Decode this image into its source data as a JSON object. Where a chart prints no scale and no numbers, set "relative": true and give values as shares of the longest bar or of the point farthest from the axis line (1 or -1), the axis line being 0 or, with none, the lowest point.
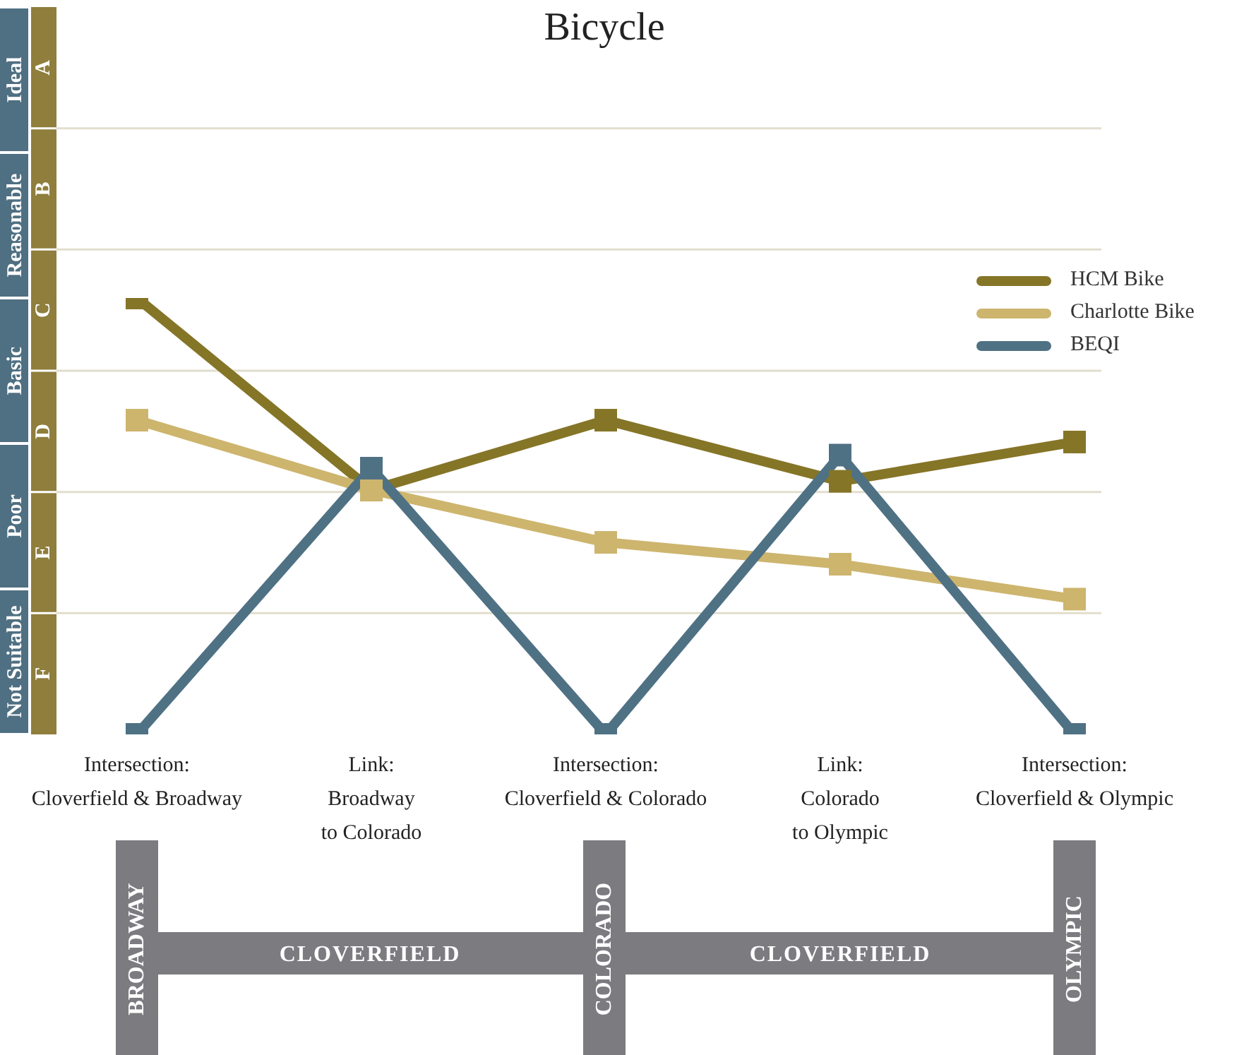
{
  "chart_data": {
    "type": "line",
    "title": "Bicycle",
    "relative": true,
    "categories": [
      "Intersection:\nCloverfield & Broadway",
      "Link:\nBroadway\nto Colorado",
      "Intersection:\nCloverfield & Colorado",
      "Link:\nColorado\nto Olympic",
      "Intersection:\nCloverfield & Olympic"
    ],
    "series": [
      {
        "name": "HCM Bike",
        "color": "#857527",
        "values": [
          1,
          0.56,
          0.72,
          0.58,
          0.67
        ]
      },
      {
        "name": "Charlotte Bike",
        "color": "#cdb56e",
        "values": [
          0.72,
          0.56,
          0.44,
          0.39,
          0.31
        ]
      },
      {
        "name": "BEQI",
        "color": "#4f7184",
        "values": [
          0,
          0.61,
          0,
          0.64,
          0
        ]
      }
    ],
    "annotations": [
      "Ideal",
      "Reasonable",
      "Basic",
      "Poor",
      "Not Suitable",
      "A",
      "B",
      "C",
      "D",
      "E",
      "F",
      "BROADWAY",
      "CLOVERFIELD",
      "COLORADO",
      "CLOVERFIELD",
      "OLYMPIC"
    ],
    "grid": true,
    "legend": "right",
    "marker": "square",
    "line_style": "solid"
  }
}
